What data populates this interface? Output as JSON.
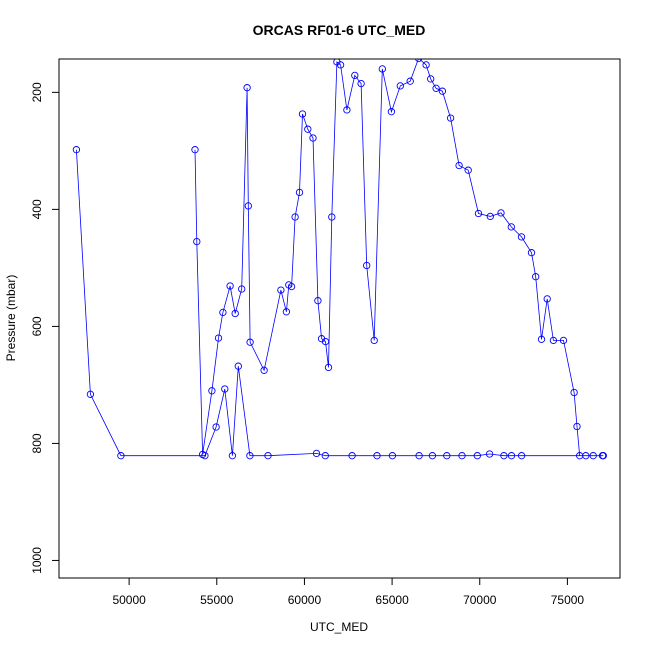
{
  "chart_data": {
    "type": "line",
    "title": "ORCAS RF01-6 UTC_MED",
    "xlabel": "UTC_MED",
    "ylabel": "Pressure (mbar)",
    "xlim": [
      46000,
      78000
    ],
    "ylim": [
      1030,
      143
    ],
    "y_reversed": true,
    "x_ticks": [
      50000,
      55000,
      60000,
      65000,
      70000,
      75000
    ],
    "y_ticks": [
      200,
      400,
      600,
      800,
      1000
    ],
    "grid": false,
    "legend": "none",
    "series": [
      {
        "color": "#0000ff",
        "marker": "open-circle",
        "x": [
          46990,
          47790,
          49530,
          54320,
          54960,
          55460,
          55890,
          56230,
          56890,
          57920,
          60690,
          61190,
          62720,
          64140,
          65020,
          66540,
          67300,
          68120,
          68990,
          69860,
          70560,
          71380,
          71810,
          72390,
          77050,
          77000,
          76470,
          76050,
          75700,
          75550,
          75380,
          74780,
          74200,
          73850,
          73520,
          73190,
          72950,
          72380,
          71800,
          71210,
          70600,
          69930,
          69340,
          68820,
          68340,
          67870,
          67510,
          67200,
          66940,
          66510,
          66030,
          65470,
          64960,
          64440,
          63980,
          63550,
          63230,
          62870,
          62420,
          62060,
          61850,
          61560,
          61370,
          61200,
          60980,
          60770,
          60490,
          60190,
          59890,
          59720,
          59470,
          59270,
          59110,
          58970,
          58660,
          57700,
          56900,
          56800,
          56730,
          56420,
          56050,
          55760,
          55350,
          55100,
          54720,
          54190,
          53860,
          53760
        ],
        "y": [
          298,
          716,
          821,
          821,
          772,
          707,
          821,
          668,
          821,
          821,
          817,
          821,
          821,
          821,
          821,
          821,
          821,
          821,
          821,
          821,
          818,
          821,
          821,
          821,
          821,
          821,
          821,
          821,
          821,
          771,
          713,
          624,
          624,
          553,
          622,
          515,
          474,
          447,
          430,
          406,
          412,
          407,
          333,
          325,
          244,
          198,
          193,
          177,
          153,
          142,
          181,
          189,
          233,
          160,
          624,
          496,
          185,
          171,
          230,
          153,
          148,
          413,
          670,
          626,
          621,
          556,
          278,
          263,
          237,
          371,
          413,
          532,
          529,
          575,
          538,
          675,
          627,
          394,
          192,
          536,
          578,
          531,
          576,
          620,
          710,
          819,
          455,
          298
        ]
      }
    ]
  }
}
